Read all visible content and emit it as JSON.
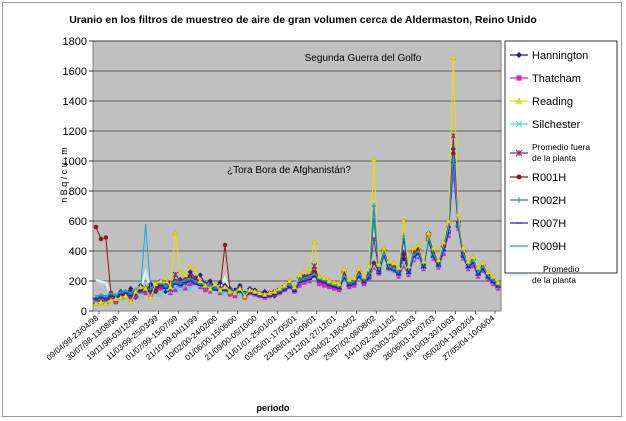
{
  "chart_data": {
    "type": "line",
    "title": "Uranio en los filtros de muestreo de aire de gran volumen cerca de Aldermaston, Reino Unido",
    "ylabel": "n B q / c u . m",
    "xlabel": "periodo",
    "ylim": [
      0,
      1800
    ],
    "yticks": [
      0,
      200,
      400,
      600,
      800,
      1000,
      1200,
      1400,
      1600,
      1800
    ],
    "grid": true,
    "legend_position": "right",
    "x_tick_labels": [
      "09/04/98-23/04/98",
      "30/07/98-13/08/98",
      "19/11/98-03/12/98",
      "11/03/99-25/03/99",
      "01/07/99-15/07/99",
      "21/10/99-04/11/99",
      "10/02/00-24/02/00",
      "01/06/00-15/06/00",
      "21/09/00-05/10/00",
      "11/01/01-25/01/01",
      "03/05/01-17/05/01",
      "23/08/01-06/09/01",
      "13/12/01-27/12/01",
      "04/04/02-18/04/02",
      "25/07/02-08/08/02",
      "14/11/02-28/11/02",
      "06/03/03-20/03/03",
      "26/06/03-10/07/03",
      "16/10/03-30/10/03",
      "05/02/04-19/02/04",
      "27/05/04-10/06/04"
    ],
    "annotations": [
      {
        "text": "Segunda Guerra del Golfo",
        "near_series": "Reading",
        "near_y": 1690
      },
      {
        "text": "¿Tora Bora de Afghanistán?",
        "near_series": "Reading",
        "near_y": 1010
      }
    ],
    "series": [
      {
        "name": "Hannington",
        "color": "#1f1f8f",
        "marker": "diamond",
        "values": [
          80,
          90,
          70,
          110,
          60,
          130,
          120,
          150,
          90,
          170,
          140,
          180,
          160,
          200,
          130,
          170,
          150,
          210,
          190,
          260,
          220,
          240,
          180,
          200,
          160,
          190,
          170,
          150,
          140,
          170,
          110,
          150,
          140,
          120,
          130,
          110,
          100,
          140,
          160,
          180,
          140,
          210,
          230,
          220,
          260,
          200,
          190,
          170,
          160,
          150,
          250,
          170,
          180,
          260,
          190,
          240,
          320,
          280,
          410,
          300,
          290,
          250,
          350,
          260,
          380,
          400,
          300,
          520,
          380,
          310,
          420,
          560,
          1080,
          590,
          380,
          300,
          330,
          250,
          290,
          230,
          200,
          170
        ]
      },
      {
        "name": "Thatcham",
        "color": "#e020c8",
        "marker": "square",
        "values": [
          60,
          70,
          80,
          90,
          60,
          100,
          110,
          80,
          100,
          130,
          120,
          110,
          140,
          150,
          160,
          120,
          140,
          170,
          150,
          180,
          200,
          160,
          140,
          130,
          150,
          120,
          140,
          110,
          100,
          130,
          90,
          120,
          110,
          100,
          90,
          100,
          110,
          120,
          140,
          160,
          130,
          170,
          190,
          200,
          240,
          180,
          170,
          160,
          150,
          140,
          230,
          160,
          170,
          230,
          180,
          220,
          290,
          250,
          380,
          280,
          270,
          230,
          300,
          240,
          340,
          360,
          280,
          480,
          350,
          290,
          380,
          500,
          920,
          550,
          350,
          280,
          300,
          230,
          270,
          210,
          180,
          150
        ]
      },
      {
        "name": "Reading",
        "color": "#e8e000",
        "marker": "triangle",
        "values": [
          50,
          60,
          50,
          70,
          80,
          90,
          100,
          60,
          130,
          160,
          150,
          90,
          180,
          200,
          220,
          160,
          520,
          260,
          240,
          300,
          280,
          200,
          170,
          150,
          180,
          140,
          160,
          130,
          120,
          150,
          100,
          140,
          130,
          120,
          110,
          120,
          130,
          150,
          170,
          200,
          160,
          240,
          260,
          280,
          460,
          230,
          220,
          200,
          190,
          180,
          280,
          210,
          220,
          280,
          230,
          300,
          1010,
          310,
          420,
          330,
          320,
          290,
          600,
          300,
          420,
          440,
          330,
          520,
          420,
          340,
          460,
          600,
          1690,
          640,
          420,
          330,
          360,
          290,
          320,
          260,
          230,
          190
        ]
      },
      {
        "name": "Silchester",
        "color": "#40e0e0",
        "marker": "x",
        "values": [
          70,
          80,
          60,
          90,
          100,
          80,
          90,
          110,
          120,
          100,
          140,
          130,
          120,
          110,
          150,
          130,
          160,
          140,
          170,
          150,
          180,
          170,
          160,
          140,
          150,
          130,
          120,
          140,
          130,
          110,
          120,
          130,
          120,
          110,
          100,
          110,
          120,
          130,
          150,
          170,
          140,
          200,
          210,
          220,
          240,
          210,
          200,
          180,
          170,
          160,
          220,
          180,
          190,
          240,
          200,
          230,
          300,
          260,
          360,
          280,
          270,
          240,
          320,
          250,
          350,
          370,
          290,
          460,
          360,
          300,
          400,
          520,
          980,
          560,
          360,
          290,
          320,
          240,
          280,
          220,
          190,
          160
        ]
      },
      {
        "name": "Promedio fuera de la planta",
        "color": "#7a2a7a",
        "marker": "star",
        "values": [
          65,
          75,
          65,
          90,
          75,
          100,
          105,
          100,
          110,
          140,
          138,
          128,
          150,
          165,
          165,
          145,
          243,
          195,
          188,
          223,
          220,
          193,
          163,
          155,
          160,
          145,
          148,
          133,
          123,
          143,
          105,
          135,
          125,
          113,
          108,
          110,
          115,
          135,
          155,
          178,
          143,
          205,
          223,
          230,
          300,
          205,
          195,
          178,
          168,
          158,
          245,
          180,
          190,
          253,
          200,
          248,
          478,
          275,
          393,
          298,
          288,
          253,
          393,
          263,
          373,
          393,
          300,
          495,
          378,
          310,
          415,
          545,
          1168,
          585,
          378,
          300,
          328,
          253,
          290,
          230,
          200,
          168
        ]
      },
      {
        "name": "R001H",
        "color": "#8b1a1a",
        "marker": "circle",
        "values": [
          560,
          480,
          490,
          120,
          90,
          100,
          110,
          130,
          120,
          140,
          150,
          160,
          130,
          180,
          170,
          190,
          200,
          180,
          210,
          230,
          200,
          190,
          180,
          170,
          160,
          150,
          440,
          140,
          130,
          150,
          120,
          130,
          120,
          110,
          100,
          120,
          130,
          140,
          160,
          180,
          150,
          200,
          220,
          230,
          260,
          220,
          210,
          190,
          180,
          170,
          240,
          190,
          200,
          250,
          210,
          240,
          320,
          270,
          410,
          300,
          290,
          260,
          380,
          270,
          390,
          410,
          310,
          500,
          390,
          320,
          430,
          560,
          1050,
          590,
          380,
          310,
          340,
          260,
          300,
          240,
          210,
          180
        ]
      },
      {
        "name": "R002H",
        "color": "#2a8a8a",
        "marker": "plus",
        "values": [
          90,
          100,
          90,
          110,
          100,
          120,
          130,
          110,
          140,
          150,
          160,
          140,
          170,
          180,
          160,
          170,
          190,
          180,
          200,
          210,
          190,
          180,
          170,
          160,
          150,
          140,
          150,
          130,
          120,
          140,
          110,
          130,
          120,
          110,
          100,
          110,
          120,
          130,
          150,
          170,
          140,
          200,
          210,
          220,
          240,
          210,
          200,
          180,
          170,
          160,
          230,
          180,
          190,
          240,
          200,
          230,
          600,
          260,
          380,
          290,
          280,
          250,
          500,
          260,
          370,
          390,
          300,
          480,
          370,
          310,
          410,
          540,
          1010,
          570,
          370,
          300,
          330,
          250,
          290,
          230,
          200,
          170
        ]
      },
      {
        "name": "R007H",
        "color": "#2020d0",
        "marker": "dash",
        "values": [
          80,
          90,
          80,
          100,
          90,
          110,
          120,
          100,
          130,
          140,
          150,
          130,
          160,
          170,
          150,
          160,
          180,
          170,
          190,
          200,
          180,
          170,
          160,
          150,
          140,
          130,
          140,
          120,
          110,
          130,
          100,
          120,
          110,
          100,
          90,
          100,
          110,
          120,
          140,
          160,
          130,
          190,
          200,
          210,
          230,
          200,
          190,
          170,
          160,
          150,
          220,
          170,
          180,
          230,
          190,
          220,
          700,
          250,
          370,
          280,
          270,
          240,
          480,
          250,
          360,
          380,
          290,
          470,
          360,
          300,
          400,
          520,
          990,
          560,
          360,
          290,
          320,
          240,
          280,
          220,
          190,
          160
        ]
      },
      {
        "name": "R009H",
        "color": "#10a8f0",
        "marker": "line",
        "values": [
          100,
          110,
          100,
          120,
          110,
          130,
          140,
          120,
          150,
          160,
          580,
          150,
          180,
          190,
          170,
          180,
          200,
          190,
          210,
          220,
          200,
          190,
          180,
          170,
          160,
          150,
          160,
          140,
          130,
          150,
          120,
          140,
          130,
          120,
          110,
          120,
          130,
          140,
          160,
          180,
          150,
          210,
          220,
          230,
          250,
          220,
          210,
          190,
          180,
          170,
          240,
          190,
          200,
          250,
          210,
          240,
          720,
          270,
          390,
          300,
          290,
          260,
          520,
          270,
          380,
          400,
          310,
          490,
          380,
          320,
          420,
          550,
          1040,
          580,
          380,
          310,
          340,
          260,
          300,
          240,
          210,
          180
        ]
      },
      {
        "name": "Promedio de la planta",
        "color": "#d8f4f8",
        "marker": "none",
        "values": [
          208,
          195,
          190,
          113,
          98,
          115,
          125,
          115,
          135,
          148,
          260,
          145,
          160,
          180,
          163,
          175,
          193,
          180,
          203,
          215,
          193,
          183,
          173,
          163,
          153,
          143,
          223,
          133,
          123,
          143,
          113,
          130,
          120,
          110,
          100,
          113,
          123,
          133,
          153,
          173,
          143,
          200,
          213,
          223,
          248,
          213,
          203,
          183,
          173,
          163,
          235,
          183,
          193,
          243,
          203,
          233,
          585,
          263,
          388,
          293,
          283,
          253,
          470,
          263,
          375,
          395,
          303,
          485,
          375,
          313,
          415,
          543,
          1023,
          575,
          373,
          303,
          333,
          253,
          293,
          233,
          203,
          173
        ]
      }
    ]
  },
  "legend": {
    "items": [
      {
        "label": "Hannington"
      },
      {
        "label": "Thatcham"
      },
      {
        "label": "Reading"
      },
      {
        "label": "Silchester"
      },
      {
        "label_line1": "Promedio fuera",
        "label_line2": "de la planta"
      },
      {
        "label": "R001H"
      },
      {
        "label": "R002H"
      },
      {
        "label": "R007H"
      },
      {
        "label": "R009H"
      },
      {
        "label_line1": "Promedio",
        "label_line2": "de la planta"
      }
    ]
  }
}
